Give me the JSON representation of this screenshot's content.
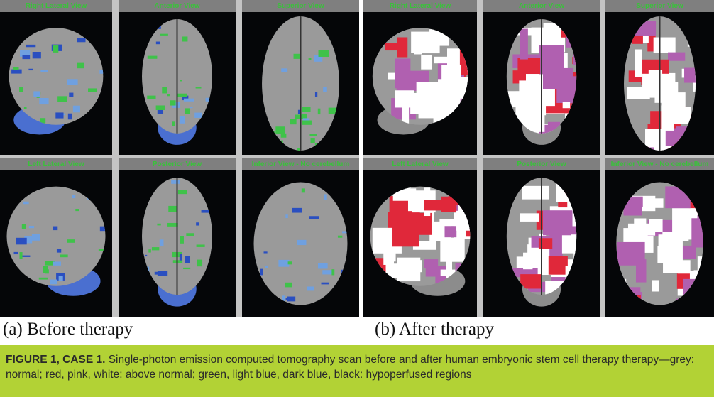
{
  "figure": {
    "before": {
      "label": "(a) Before therapy",
      "views": [
        "Right Lateral View",
        "Anterior View",
        "Superior View",
        "Left Lateral View",
        "Posterior View",
        "Inferior View - No cerebellum"
      ]
    },
    "after": {
      "label": "(b) After therapy",
      "views": [
        "Right Lateral View",
        "Anterior View",
        "Superior View",
        "Left Lateral View",
        "Posterior View",
        "Inferior View - No cerebellum"
      ]
    },
    "caption": {
      "lead": "FIGURE 1, CASE 1.",
      "text": " Single-photon emission computed tomography scan before and after human embryonic stem cell therapy therapy—grey: normal; red, pink, white: above normal; green, light blue, dark blue, black: hypoperfused regions"
    },
    "colors": {
      "normal": "#9a9a9a",
      "above_normal": [
        "#e0283a",
        "#b060b0",
        "#ffffff"
      ],
      "hypoperfused": [
        "#3fc24a",
        "#6fa0e0",
        "#2a4fc0",
        "#000000"
      ],
      "caption_band": "#b2d235",
      "view_label": "#39c23a"
    }
  }
}
